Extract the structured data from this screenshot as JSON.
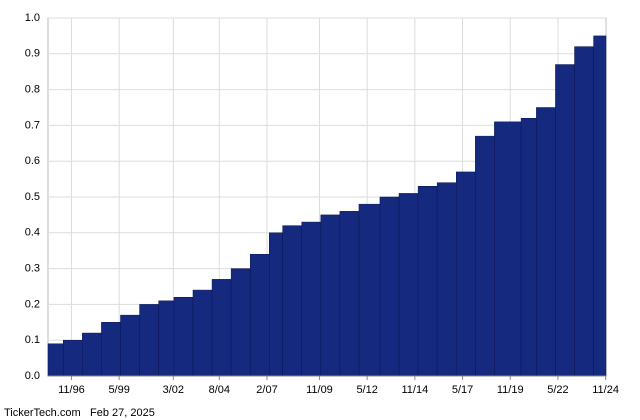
{
  "chart_data": {
    "type": "bar",
    "color": "#15297f",
    "grid": true,
    "x": [
      1995.6,
      1996.4,
      1997.4,
      1998.4,
      1999.4,
      2000.4,
      2001.4,
      2002.2,
      2003.2,
      2004.2,
      2005.2,
      2006.2,
      2007.2,
      2007.9,
      2008.9,
      2009.9,
      2010.9,
      2011.9,
      2013.0,
      2014.0,
      2015.0,
      2016.0,
      2017.0,
      2018.0,
      2019.0,
      2020.4,
      2021.2,
      2022.2,
      2023.2,
      2024.2
    ],
    "values": [
      0.09,
      0.1,
      0.12,
      0.15,
      0.17,
      0.2,
      0.21,
      0.22,
      0.24,
      0.27,
      0.3,
      0.34,
      0.4,
      0.42,
      0.43,
      0.45,
      0.46,
      0.48,
      0.5,
      0.51,
      0.53,
      0.54,
      0.57,
      0.67,
      0.71,
      0.72,
      0.75,
      0.87,
      0.92,
      0.95
    ],
    "xlim": [
      1995.6,
      2024.85
    ],
    "xticks": [
      {
        "value": 1996.83,
        "label": "11/96"
      },
      {
        "value": 1999.33,
        "label": "5/99"
      },
      {
        "value": 2002.17,
        "label": "3/02"
      },
      {
        "value": 2004.58,
        "label": "8/04"
      },
      {
        "value": 2007.08,
        "label": "2/07"
      },
      {
        "value": 2009.83,
        "label": "11/09"
      },
      {
        "value": 2012.33,
        "label": "5/12"
      },
      {
        "value": 2014.83,
        "label": "11/14"
      },
      {
        "value": 2017.33,
        "label": "5/17"
      },
      {
        "value": 2019.83,
        "label": "11/19"
      },
      {
        "value": 2022.33,
        "label": "5/22"
      },
      {
        "value": 2024.83,
        "label": "11/24"
      }
    ],
    "ylim": [
      0,
      1
    ],
    "yticks": [
      {
        "value": 0,
        "label": "0.0"
      },
      0.1,
      0.2,
      0.3,
      0.4,
      0.5,
      0.6,
      0.7,
      0.8,
      0.9,
      {
        "value": 1,
        "label": "1.0"
      }
    ],
    "source": "TickerTech.com",
    "date": "Feb 27, 2025"
  }
}
